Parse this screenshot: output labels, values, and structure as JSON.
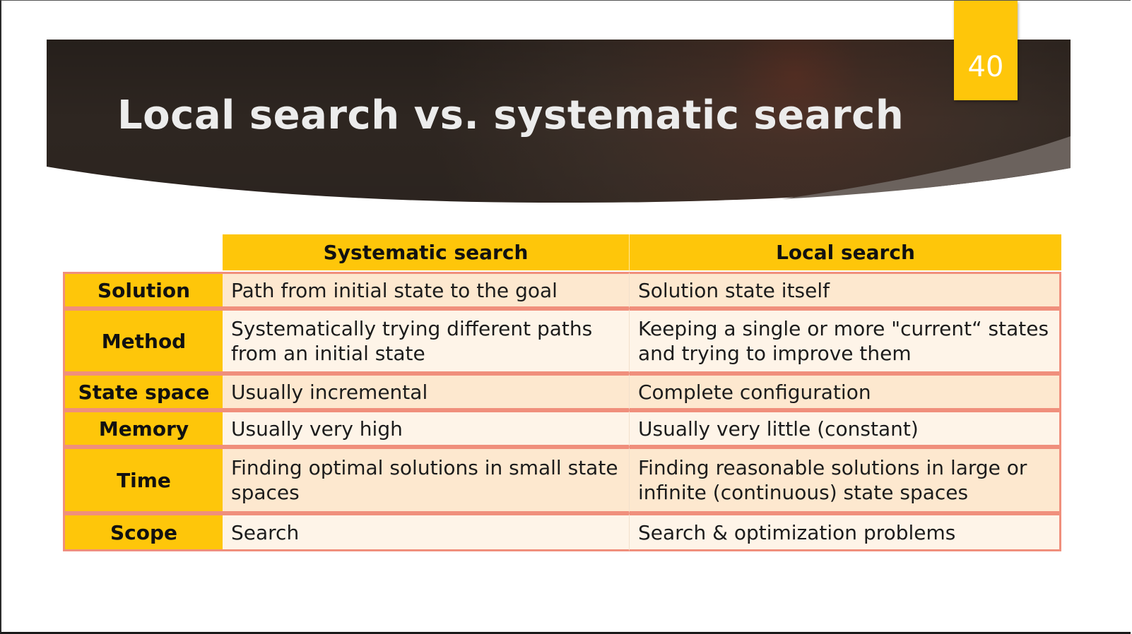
{
  "slide": {
    "title": "Local search vs. systematic search",
    "page_number": "40",
    "colors": {
      "banner": "#3d2f26",
      "accent": "#fec60a",
      "row_border": "#f08f7c",
      "row_fill_dark": "#fde8cf",
      "row_fill_light": "#fef4e8"
    }
  },
  "table": {
    "headers": [
      "Systematic search",
      "Local search"
    ],
    "rows": [
      {
        "label": "Solution",
        "systematic": "Path from initial state to the goal",
        "local": "Solution state itself"
      },
      {
        "label": "Method",
        "systematic": "Systematically trying different paths from an initial state",
        "local": "Keeping a single or more \"current“ states and trying to improve them"
      },
      {
        "label": "State space",
        "systematic": "Usually incremental",
        "local": "Complete configuration"
      },
      {
        "label": "Memory",
        "systematic": "Usually very high",
        "local": "Usually very little (constant)"
      },
      {
        "label": "Time",
        "systematic": "Finding optimal solutions in small state spaces",
        "local": "Finding reasonable solutions in large or infinite (continuous) state spaces"
      },
      {
        "label": "Scope",
        "systematic": "Search",
        "local": "Search & optimization problems"
      }
    ]
  }
}
